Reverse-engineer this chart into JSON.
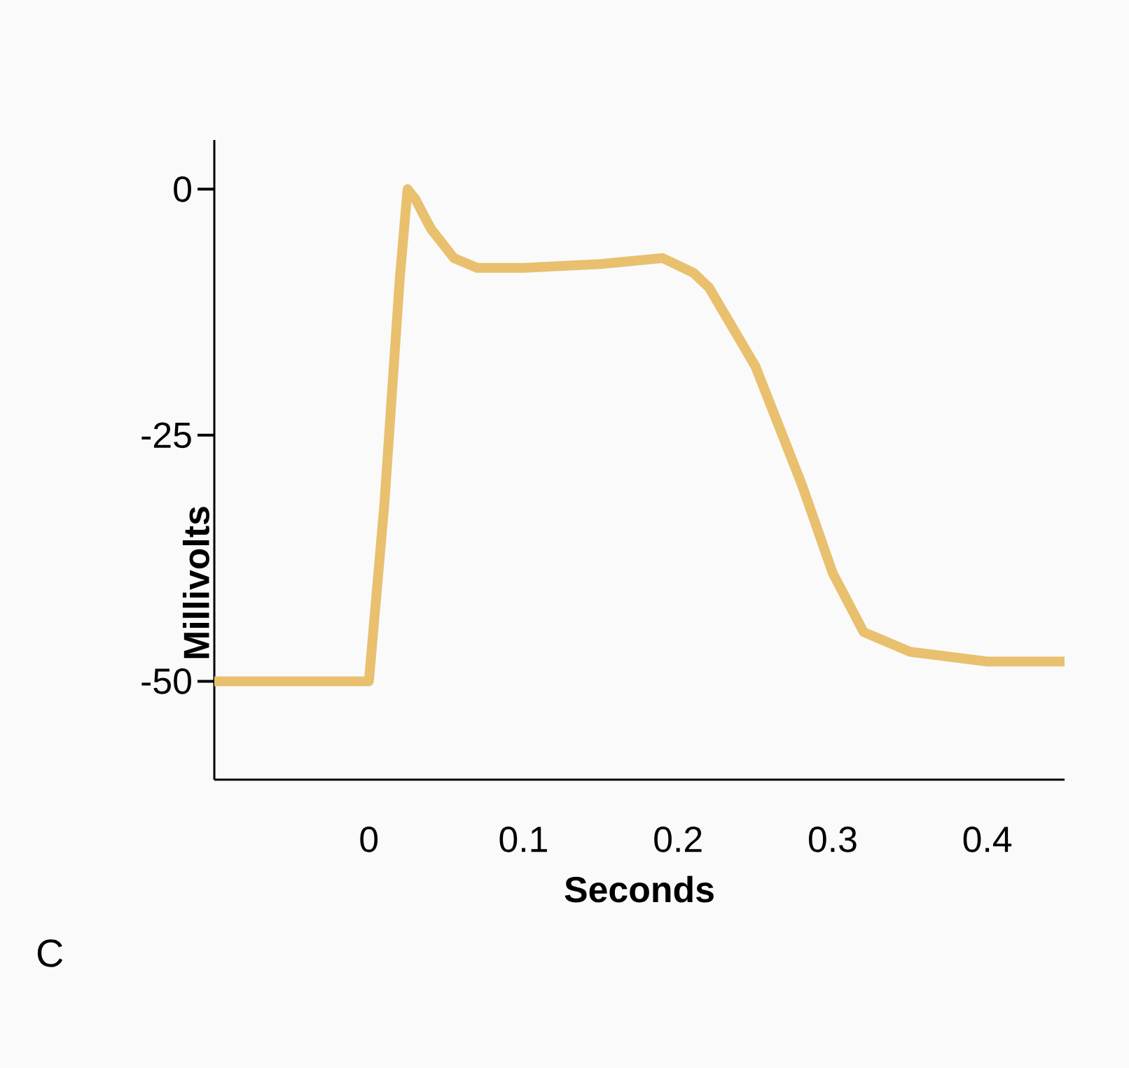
{
  "chart_data": {
    "type": "line",
    "xlabel": "Seconds",
    "ylabel": "Millivolts",
    "annotations": [
      "C"
    ],
    "x": [
      -0.1,
      0,
      0.01,
      0.02,
      0.025,
      0.03,
      0.04,
      0.055,
      0.07,
      0.08,
      0.1,
      0.15,
      0.19,
      0.21,
      0.22,
      0.25,
      0.28,
      0.3,
      0.32,
      0.35,
      0.4,
      0.45
    ],
    "values": [
      -50,
      -50,
      -32,
      -9,
      0,
      -1,
      -4,
      -7,
      -8,
      -8,
      -8,
      -7.6,
      -7,
      -8.5,
      -10,
      -18,
      -30,
      -39,
      -45,
      -47,
      -48,
      -48
    ],
    "color": "#e8c06e",
    "marker": "none",
    "line_style": "solid",
    "xlim": [
      -0.1,
      0.45
    ],
    "ylim": [
      -60,
      5
    ],
    "xticks": [
      0,
      0.1,
      0.2,
      0.3,
      0.4
    ],
    "yticks": [
      -50,
      -25,
      0
    ]
  }
}
